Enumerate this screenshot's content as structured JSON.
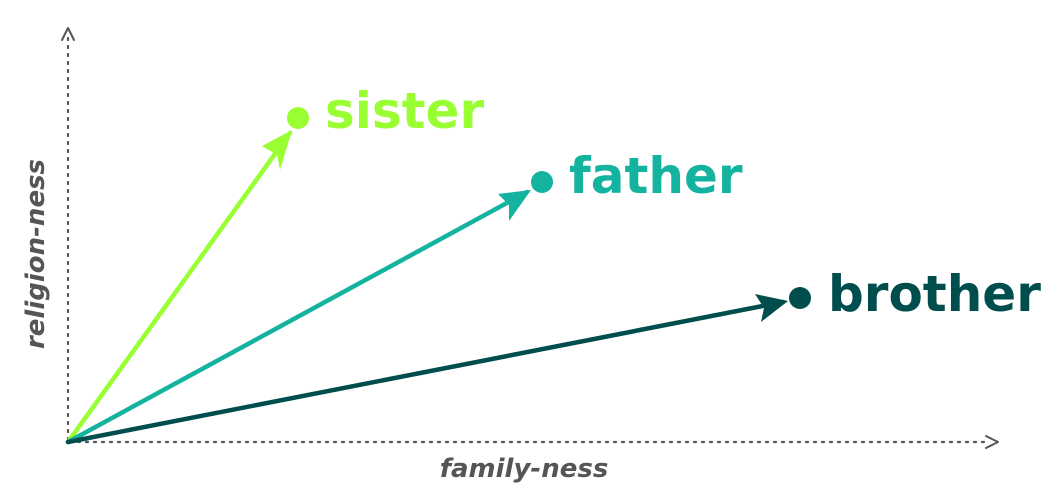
{
  "axes": {
    "x_label": "family-ness",
    "y_label": "religion-ness"
  },
  "vectors": [
    {
      "word": "sister",
      "color": "#99ff33"
    },
    {
      "word": "father",
      "color": "#14b39f"
    },
    {
      "word": "brother",
      "color": "#004d4d"
    }
  ]
}
